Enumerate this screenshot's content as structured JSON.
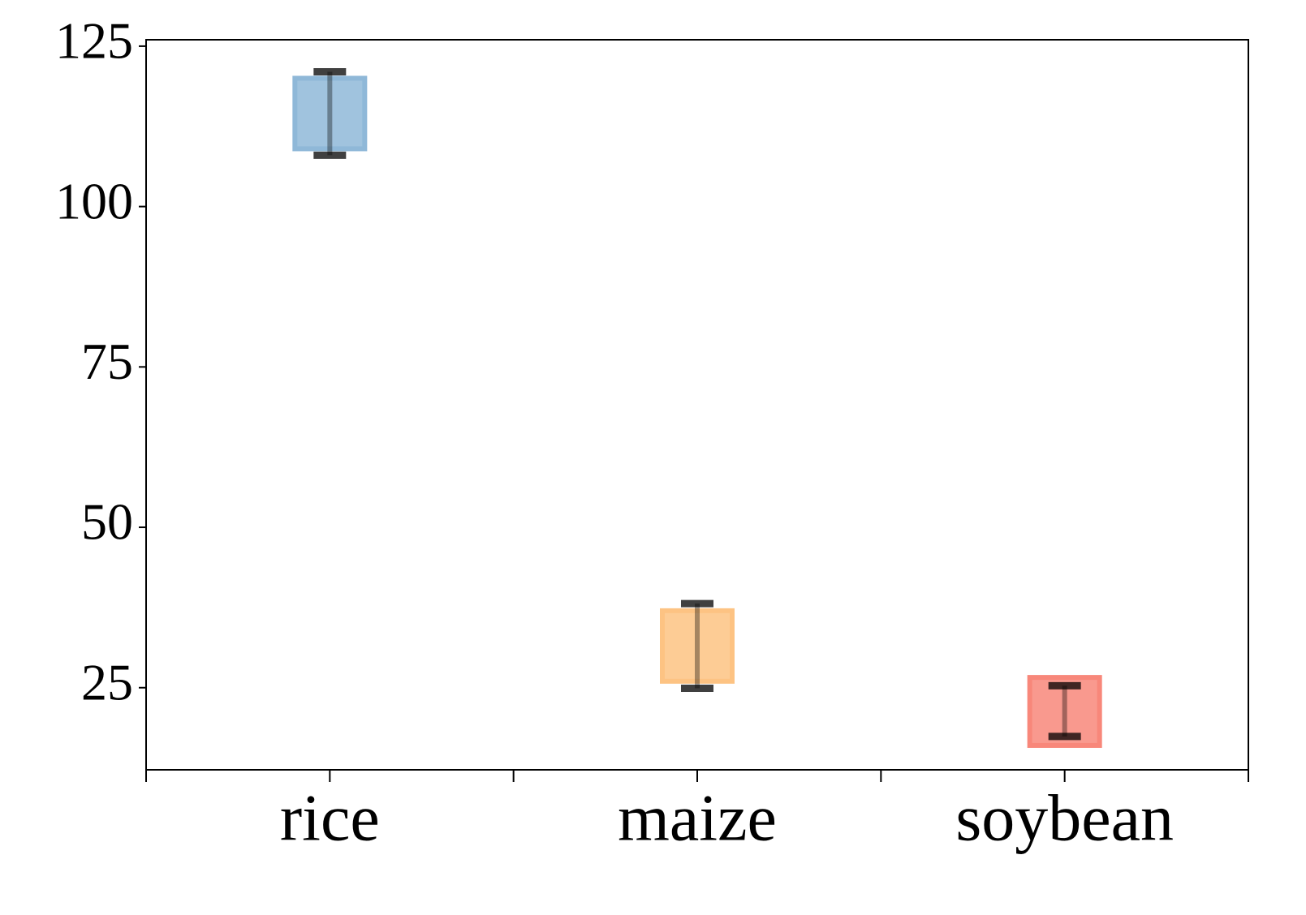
{
  "chart_data": {
    "type": "floating_box",
    "categories": [
      "rice",
      "maize",
      "soybean"
    ],
    "box_low": [
      109,
      26,
      16
    ],
    "box_high": [
      120,
      37,
      26.6
    ],
    "whisker_low": [
      108,
      24.9,
      17.4
    ],
    "whisker_high": [
      121,
      38.1,
      25.3
    ],
    "colors": [
      "#8fb8d8",
      "#fdc383",
      "#f8877a"
    ],
    "ylim": [
      12.2,
      126
    ],
    "yticks": [
      25,
      50,
      75,
      100,
      125
    ]
  }
}
